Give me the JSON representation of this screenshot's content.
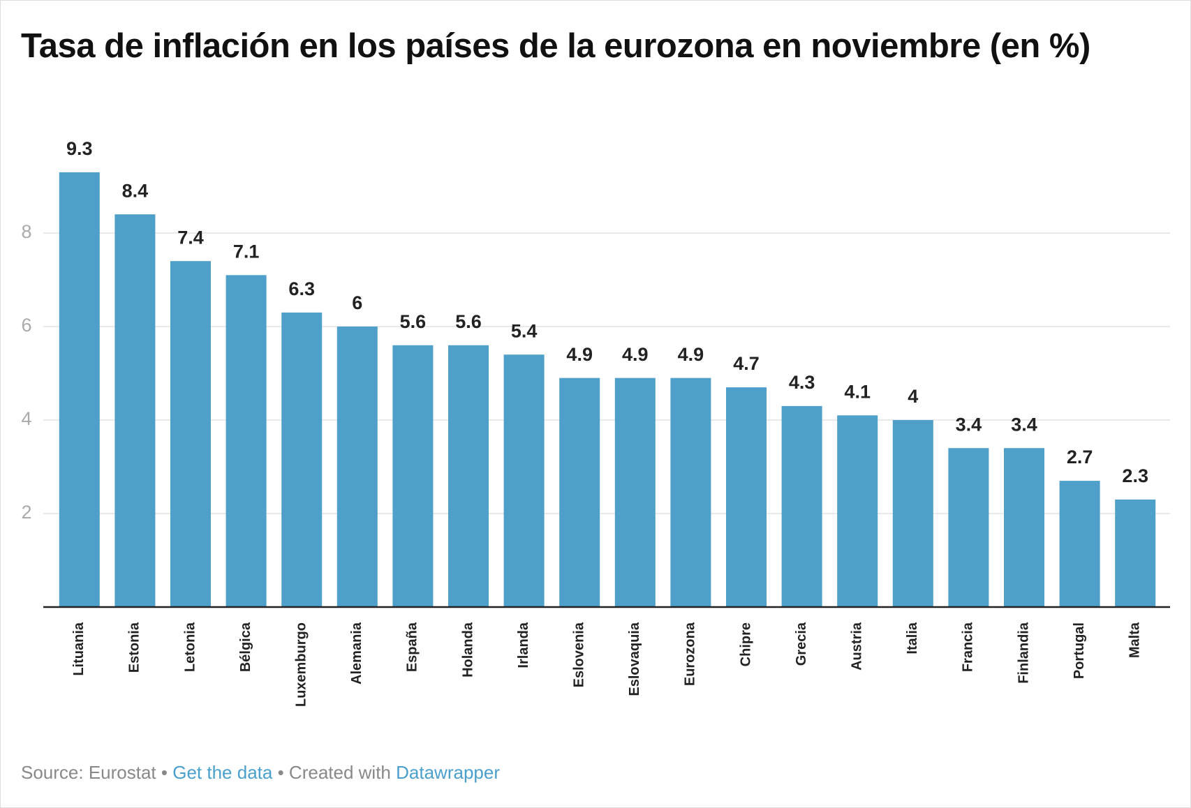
{
  "chart_data": {
    "type": "bar",
    "title": "Tasa de inflación en los países de la eurozona en noviembre (en %)",
    "categories": [
      "Lituania",
      "Estonia",
      "Letonia",
      "Bélgica",
      "Luxemburgo",
      "Alemania",
      "España",
      "Holanda",
      "Irlanda",
      "Eslovenia",
      "Eslovaquia",
      "Eurozona",
      "Chipre",
      "Grecia",
      "Austria",
      "Italia",
      "Francia",
      "Finlandia",
      "Portugal",
      "Malta"
    ],
    "values": [
      9.3,
      8.4,
      7.4,
      7.1,
      6.3,
      6,
      5.6,
      5.6,
      5.4,
      4.9,
      4.9,
      4.9,
      4.7,
      4.3,
      4.1,
      4,
      3.4,
      3.4,
      2.7,
      2.3
    ],
    "color": "#4e9fca",
    "ylim": [
      0,
      10
    ],
    "yticks": [
      2,
      4,
      6,
      8
    ],
    "grid": true,
    "footer": [
      "Source: Eurostat",
      "•",
      "Get the data",
      "•",
      "Created with",
      "Datawrapper"
    ]
  }
}
